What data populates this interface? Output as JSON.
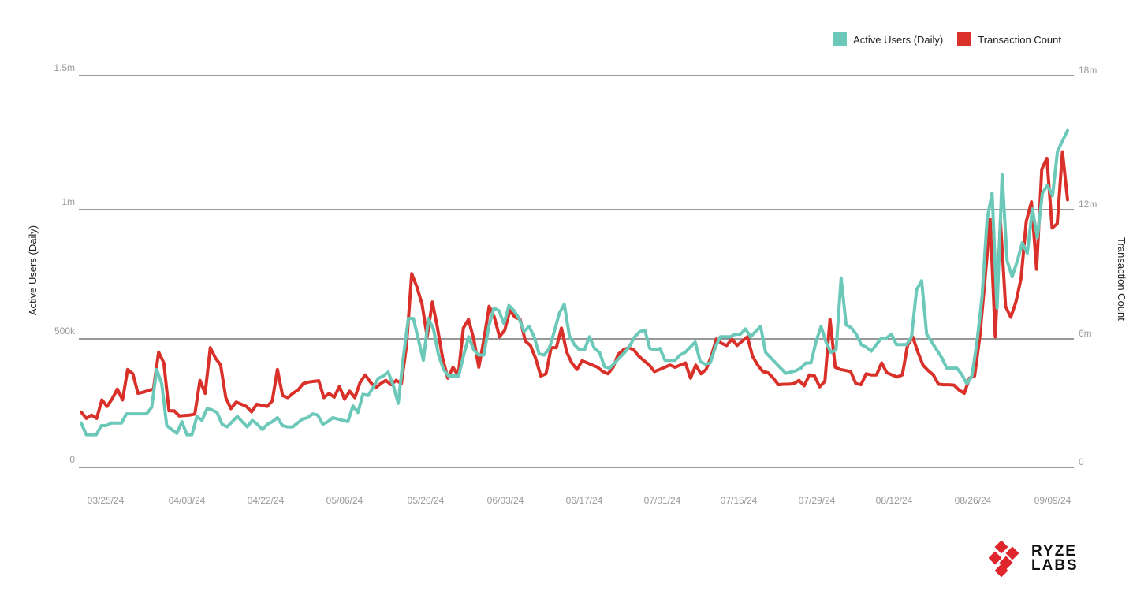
{
  "colors": {
    "active_users": "#6cc9b9",
    "transaction_count": "#d9302a",
    "grid": "#333333",
    "tick": "#999999",
    "axis_title": "#222222",
    "logo_red": "#e0262d"
  },
  "legend": [
    {
      "label": "Active Users (Daily)",
      "color": "#6cc9b9"
    },
    {
      "label": "Transaction Count",
      "color": "#d9302a"
    }
  ],
  "logo": {
    "line1": "RYZE",
    "line2": "LABS"
  },
  "chart_data": {
    "type": "line",
    "title": "",
    "x_tick_labels": [
      "03/25/24",
      "04/08/24",
      "04/22/24",
      "05/06/24",
      "05/20/24",
      "06/03/24",
      "06/17/24",
      "07/01/24",
      "07/15/24",
      "07/29/24",
      "08/12/24",
      "08/26/24",
      "09/09/24"
    ],
    "x_range": [
      "03/20/24",
      "09/13/24"
    ],
    "y_left": {
      "label": "Active Users (Daily)",
      "ticks": [
        "0",
        "500k",
        "1m",
        "1.5m"
      ],
      "range": [
        0,
        1500000
      ]
    },
    "y_right": {
      "label": "Transaction Count",
      "ticks": [
        "0",
        "6m",
        "12m",
        "18m"
      ],
      "range": [
        0,
        18000000
      ]
    },
    "grid": "horizontal",
    "legend_position": "top-right",
    "series": [
      {
        "name": "Active Users (Daily)",
        "axis": "left",
        "values": [
          170000,
          125000,
          125000,
          125000,
          160000,
          160000,
          170000,
          170000,
          170000,
          205000,
          205000,
          205000,
          205000,
          205000,
          230000,
          375000,
          320000,
          160000,
          145000,
          130000,
          175000,
          125000,
          125000,
          195000,
          180000,
          225000,
          220000,
          210000,
          165000,
          155000,
          175000,
          195000,
          175000,
          155000,
          180000,
          165000,
          145000,
          165000,
          175000,
          190000,
          160000,
          155000,
          155000,
          170000,
          185000,
          190000,
          205000,
          200000,
          165000,
          175000,
          190000,
          185000,
          180000,
          175000,
          235000,
          210000,
          280000,
          275000,
          305000,
          340000,
          350000,
          365000,
          315000,
          245000,
          420000,
          570000,
          570000,
          490000,
          410000,
          570000,
          530000,
          430000,
          375000,
          350000,
          350000,
          350000,
          430000,
          500000,
          450000,
          430000,
          430000,
          540000,
          610000,
          600000,
          550000,
          620000,
          600000,
          570000,
          520000,
          540000,
          500000,
          435000,
          430000,
          455000,
          520000,
          590000,
          625000,
          505000,
          470000,
          450000,
          450000,
          500000,
          455000,
          440000,
          385000,
          380000,
          400000,
          420000,
          440000,
          465000,
          500000,
          520000,
          525000,
          455000,
          450000,
          455000,
          410000,
          410000,
          410000,
          430000,
          440000,
          460000,
          480000,
          405000,
          395000,
          400000,
          460000,
          500000,
          500000,
          500000,
          510000,
          510000,
          530000,
          500000,
          520000,
          540000,
          440000,
          420000,
          400000,
          380000,
          360000,
          365000,
          370000,
          380000,
          400000,
          400000,
          480000,
          540000,
          480000,
          440000,
          450000,
          725000,
          545000,
          535000,
          510000,
          470000,
          460000,
          445000,
          470000,
          495000,
          495000,
          510000,
          470000,
          470000,
          470000,
          500000,
          680000,
          715000,
          510000,
          480000,
          450000,
          420000,
          380000,
          380000,
          380000,
          355000,
          320000,
          350000,
          480000,
          650000,
          950000,
          1050000,
          610000,
          1120000,
          790000,
          730000,
          790000,
          860000,
          820000,
          990000,
          880000,
          1050000,
          1080000,
          1040000,
          1210000,
          1250000,
          1290000
        ],
        "color": "#6cc9b9"
      },
      {
        "name": "Transaction Count",
        "axis": "right",
        "values": [
          2540000,
          2250000,
          2400000,
          2250000,
          3100000,
          2800000,
          3150000,
          3600000,
          3100000,
          4500000,
          4300000,
          3400000,
          3450000,
          3530000,
          3600000,
          5300000,
          4800000,
          2600000,
          2600000,
          2360000,
          2380000,
          2400000,
          2450000,
          4000000,
          3400000,
          5500000,
          5020000,
          4700000,
          3200000,
          2700000,
          3000000,
          2900000,
          2800000,
          2550000,
          2900000,
          2850000,
          2800000,
          3050000,
          4500000,
          3300000,
          3200000,
          3400000,
          3560000,
          3850000,
          3920000,
          3950000,
          3980000,
          3200000,
          3400000,
          3220000,
          3720000,
          3130000,
          3500000,
          3200000,
          3900000,
          4250000,
          3920000,
          3650000,
          3850000,
          4000000,
          3800000,
          4000000,
          3850000,
          5600000,
          8900000,
          8300000,
          7500000,
          6000000,
          7600000,
          6400000,
          5000000,
          4100000,
          4600000,
          4200000,
          6400000,
          6800000,
          5900000,
          4600000,
          5900000,
          7400000,
          6900000,
          6000000,
          6300000,
          7200000,
          6900000,
          6800000,
          5800000,
          5600000,
          5000000,
          4200000,
          4300000,
          5500000,
          5500000,
          6400000,
          5300000,
          4800000,
          4500000,
          4900000,
          4800000,
          4700000,
          4600000,
          4400000,
          4300000,
          4600000,
          5200000,
          5400000,
          5500000,
          5400000,
          5100000,
          4900000,
          4700000,
          4400000,
          4500000,
          4600000,
          4700000,
          4600000,
          4700000,
          4800000,
          4100000,
          4700000,
          4300000,
          4500000,
          5100000,
          5900000,
          5700000,
          5600000,
          5900000,
          5600000,
          5800000,
          6000000,
          5100000,
          4700000,
          4400000,
          4350000,
          4100000,
          3800000,
          3820000,
          3820000,
          3850000,
          4000000,
          3750000,
          4250000,
          4200000,
          3700000,
          3950000,
          6800000,
          4600000,
          4500000,
          4450000,
          4400000,
          3850000,
          3800000,
          4300000,
          4250000,
          4250000,
          4800000,
          4350000,
          4250000,
          4150000,
          4250000,
          5600000,
          6000000,
          5300000,
          4700000,
          4450000,
          4250000,
          3820000,
          3800000,
          3800000,
          3780000,
          3550000,
          3400000,
          4100000,
          4200000,
          6000000,
          8600000,
          11400000,
          6000000,
          11300000,
          7400000,
          6900000,
          7600000,
          8700000,
          11300000,
          12200000,
          9100000,
          13700000,
          14200000,
          11000000,
          11200000,
          14500000,
          12300000
        ]
      }
    ]
  }
}
